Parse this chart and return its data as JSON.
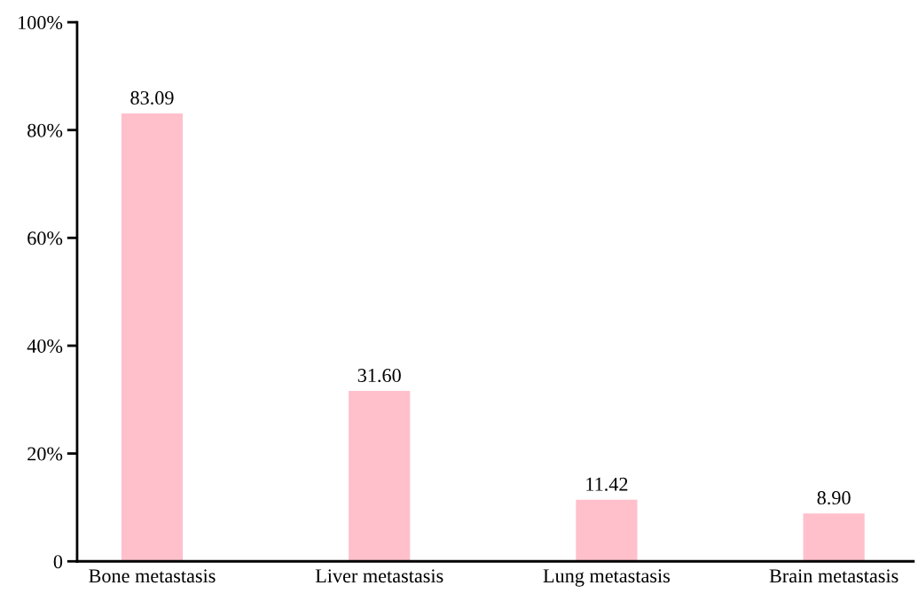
{
  "chart_data": {
    "type": "bar",
    "categories": [
      "Bone metastasis",
      "Liver metastasis",
      "Lung metastasis",
      "Brain metastasis"
    ],
    "values": [
      83.09,
      31.6,
      11.42,
      8.9
    ],
    "value_labels": [
      "83.09",
      "31.60",
      "11.42",
      "8.90"
    ],
    "color": "#ffc0cb",
    "ylim": [
      0,
      100
    ],
    "yticks": [
      {
        "value": 0,
        "label": "0"
      },
      {
        "value": 20,
        "label": "20%"
      },
      {
        "value": 40,
        "label": "40%"
      },
      {
        "value": 60,
        "label": "60%"
      },
      {
        "value": 80,
        "label": "80%"
      },
      {
        "value": 100,
        "label": "100%"
      }
    ],
    "grid": false,
    "legend": false
  }
}
